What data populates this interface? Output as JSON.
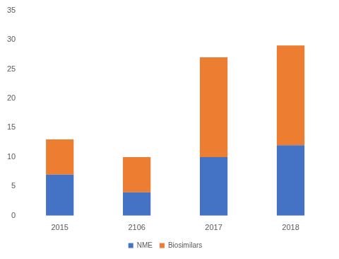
{
  "chart_data": {
    "type": "bar",
    "stacked": true,
    "categories": [
      "2015",
      "2106",
      "2017",
      "2018"
    ],
    "series": [
      {
        "name": "NME",
        "color": "#4472c4",
        "values": [
          7,
          4,
          10,
          12
        ]
      },
      {
        "name": "Biosimilars",
        "color": "#ed7d31",
        "values": [
          6,
          6,
          17,
          17
        ]
      }
    ],
    "ylim": [
      0,
      35
    ],
    "yticks": [
      0,
      5,
      10,
      15,
      20,
      25,
      30,
      35
    ],
    "grid": false,
    "legend": "bottom"
  }
}
